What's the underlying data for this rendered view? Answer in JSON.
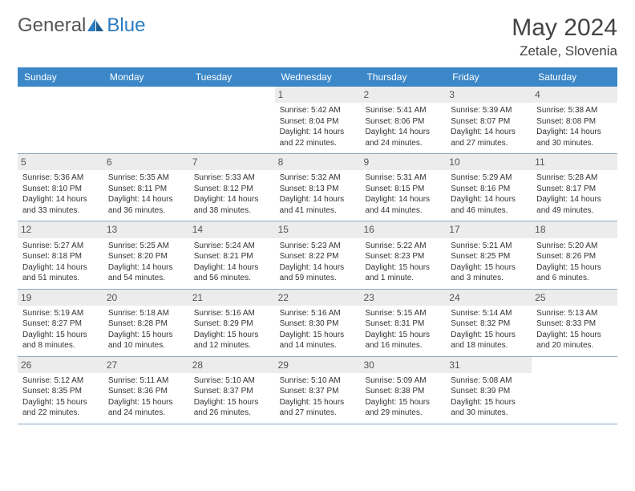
{
  "logo": {
    "part1": "General",
    "part2": "Blue"
  },
  "title": "May 2024",
  "location": "Zetale, Slovenia",
  "colors": {
    "header_bg": "#3b87c8",
    "daynum_bg": "#ececec",
    "week_border": "#8aa9c4",
    "logo_blue": "#2b7bbf"
  },
  "daysOfWeek": [
    "Sunday",
    "Monday",
    "Tuesday",
    "Wednesday",
    "Thursday",
    "Friday",
    "Saturday"
  ],
  "weeks": [
    [
      {
        "n": "",
        "empty": true
      },
      {
        "n": "",
        "empty": true
      },
      {
        "n": "",
        "empty": true
      },
      {
        "n": "1",
        "sr": "Sunrise: 5:42 AM",
        "ss": "Sunset: 8:04 PM",
        "d1": "Daylight: 14 hours",
        "d2": "and 22 minutes."
      },
      {
        "n": "2",
        "sr": "Sunrise: 5:41 AM",
        "ss": "Sunset: 8:06 PM",
        "d1": "Daylight: 14 hours",
        "d2": "and 24 minutes."
      },
      {
        "n": "3",
        "sr": "Sunrise: 5:39 AM",
        "ss": "Sunset: 8:07 PM",
        "d1": "Daylight: 14 hours",
        "d2": "and 27 minutes."
      },
      {
        "n": "4",
        "sr": "Sunrise: 5:38 AM",
        "ss": "Sunset: 8:08 PM",
        "d1": "Daylight: 14 hours",
        "d2": "and 30 minutes."
      }
    ],
    [
      {
        "n": "5",
        "sr": "Sunrise: 5:36 AM",
        "ss": "Sunset: 8:10 PM",
        "d1": "Daylight: 14 hours",
        "d2": "and 33 minutes."
      },
      {
        "n": "6",
        "sr": "Sunrise: 5:35 AM",
        "ss": "Sunset: 8:11 PM",
        "d1": "Daylight: 14 hours",
        "d2": "and 36 minutes."
      },
      {
        "n": "7",
        "sr": "Sunrise: 5:33 AM",
        "ss": "Sunset: 8:12 PM",
        "d1": "Daylight: 14 hours",
        "d2": "and 38 minutes."
      },
      {
        "n": "8",
        "sr": "Sunrise: 5:32 AM",
        "ss": "Sunset: 8:13 PM",
        "d1": "Daylight: 14 hours",
        "d2": "and 41 minutes."
      },
      {
        "n": "9",
        "sr": "Sunrise: 5:31 AM",
        "ss": "Sunset: 8:15 PM",
        "d1": "Daylight: 14 hours",
        "d2": "and 44 minutes."
      },
      {
        "n": "10",
        "sr": "Sunrise: 5:29 AM",
        "ss": "Sunset: 8:16 PM",
        "d1": "Daylight: 14 hours",
        "d2": "and 46 minutes."
      },
      {
        "n": "11",
        "sr": "Sunrise: 5:28 AM",
        "ss": "Sunset: 8:17 PM",
        "d1": "Daylight: 14 hours",
        "d2": "and 49 minutes."
      }
    ],
    [
      {
        "n": "12",
        "sr": "Sunrise: 5:27 AM",
        "ss": "Sunset: 8:18 PM",
        "d1": "Daylight: 14 hours",
        "d2": "and 51 minutes."
      },
      {
        "n": "13",
        "sr": "Sunrise: 5:25 AM",
        "ss": "Sunset: 8:20 PM",
        "d1": "Daylight: 14 hours",
        "d2": "and 54 minutes."
      },
      {
        "n": "14",
        "sr": "Sunrise: 5:24 AM",
        "ss": "Sunset: 8:21 PM",
        "d1": "Daylight: 14 hours",
        "d2": "and 56 minutes."
      },
      {
        "n": "15",
        "sr": "Sunrise: 5:23 AM",
        "ss": "Sunset: 8:22 PM",
        "d1": "Daylight: 14 hours",
        "d2": "and 59 minutes."
      },
      {
        "n": "16",
        "sr": "Sunrise: 5:22 AM",
        "ss": "Sunset: 8:23 PM",
        "d1": "Daylight: 15 hours",
        "d2": "and 1 minute."
      },
      {
        "n": "17",
        "sr": "Sunrise: 5:21 AM",
        "ss": "Sunset: 8:25 PM",
        "d1": "Daylight: 15 hours",
        "d2": "and 3 minutes."
      },
      {
        "n": "18",
        "sr": "Sunrise: 5:20 AM",
        "ss": "Sunset: 8:26 PM",
        "d1": "Daylight: 15 hours",
        "d2": "and 6 minutes."
      }
    ],
    [
      {
        "n": "19",
        "sr": "Sunrise: 5:19 AM",
        "ss": "Sunset: 8:27 PM",
        "d1": "Daylight: 15 hours",
        "d2": "and 8 minutes."
      },
      {
        "n": "20",
        "sr": "Sunrise: 5:18 AM",
        "ss": "Sunset: 8:28 PM",
        "d1": "Daylight: 15 hours",
        "d2": "and 10 minutes."
      },
      {
        "n": "21",
        "sr": "Sunrise: 5:16 AM",
        "ss": "Sunset: 8:29 PM",
        "d1": "Daylight: 15 hours",
        "d2": "and 12 minutes."
      },
      {
        "n": "22",
        "sr": "Sunrise: 5:16 AM",
        "ss": "Sunset: 8:30 PM",
        "d1": "Daylight: 15 hours",
        "d2": "and 14 minutes."
      },
      {
        "n": "23",
        "sr": "Sunrise: 5:15 AM",
        "ss": "Sunset: 8:31 PM",
        "d1": "Daylight: 15 hours",
        "d2": "and 16 minutes."
      },
      {
        "n": "24",
        "sr": "Sunrise: 5:14 AM",
        "ss": "Sunset: 8:32 PM",
        "d1": "Daylight: 15 hours",
        "d2": "and 18 minutes."
      },
      {
        "n": "25",
        "sr": "Sunrise: 5:13 AM",
        "ss": "Sunset: 8:33 PM",
        "d1": "Daylight: 15 hours",
        "d2": "and 20 minutes."
      }
    ],
    [
      {
        "n": "26",
        "sr": "Sunrise: 5:12 AM",
        "ss": "Sunset: 8:35 PM",
        "d1": "Daylight: 15 hours",
        "d2": "and 22 minutes."
      },
      {
        "n": "27",
        "sr": "Sunrise: 5:11 AM",
        "ss": "Sunset: 8:36 PM",
        "d1": "Daylight: 15 hours",
        "d2": "and 24 minutes."
      },
      {
        "n": "28",
        "sr": "Sunrise: 5:10 AM",
        "ss": "Sunset: 8:37 PM",
        "d1": "Daylight: 15 hours",
        "d2": "and 26 minutes."
      },
      {
        "n": "29",
        "sr": "Sunrise: 5:10 AM",
        "ss": "Sunset: 8:37 PM",
        "d1": "Daylight: 15 hours",
        "d2": "and 27 minutes."
      },
      {
        "n": "30",
        "sr": "Sunrise: 5:09 AM",
        "ss": "Sunset: 8:38 PM",
        "d1": "Daylight: 15 hours",
        "d2": "and 29 minutes."
      },
      {
        "n": "31",
        "sr": "Sunrise: 5:08 AM",
        "ss": "Sunset: 8:39 PM",
        "d1": "Daylight: 15 hours",
        "d2": "and 30 minutes."
      },
      {
        "n": "",
        "empty": true
      }
    ]
  ]
}
